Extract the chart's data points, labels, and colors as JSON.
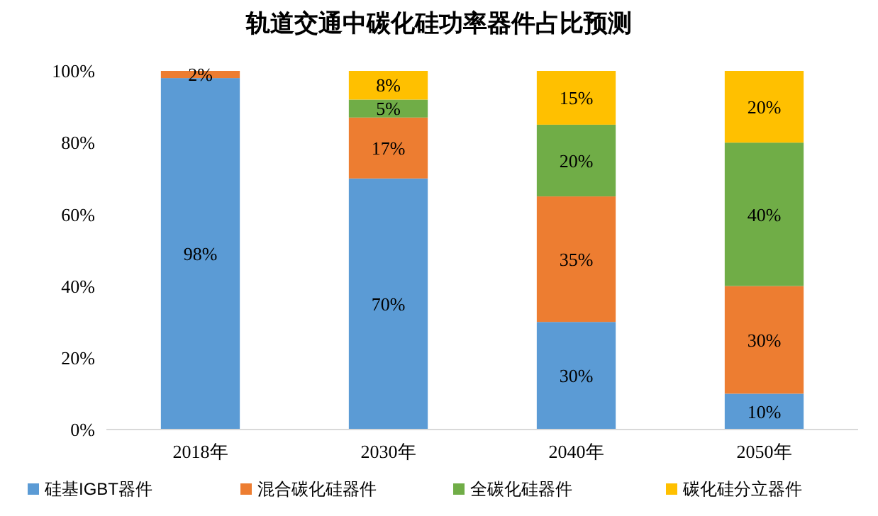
{
  "chart_data": {
    "type": "bar",
    "title": "轨道交通中碳化硅功率器件占比预测",
    "categories": [
      "2018年",
      "2030年",
      "2040年",
      "2050年"
    ],
    "stacked": true,
    "ylim": [
      0,
      100
    ],
    "yticks": [
      {
        "value": 0,
        "label": "0%"
      },
      {
        "value": 20,
        "label": "20%"
      },
      {
        "value": 40,
        "label": "40%"
      },
      {
        "value": 60,
        "label": "60%"
      },
      {
        "value": 80,
        "label": "80%"
      },
      {
        "value": 100,
        "label": "100%"
      }
    ],
    "grid": false,
    "legend": "bottom",
    "series": [
      {
        "name": "硅基IGBT器件",
        "color": "#5b9bd5",
        "values": [
          98,
          70,
          30,
          10
        ],
        "value_labels": [
          "98%",
          "70%",
          "30%",
          "10%"
        ]
      },
      {
        "name": "混合碳化硅器件",
        "color": "#ed7d31",
        "values": [
          2,
          17,
          35,
          30
        ],
        "value_labels": [
          "2%",
          "17%",
          "35%",
          "30%"
        ]
      },
      {
        "name": "全碳化硅器件",
        "color": "#70ad47",
        "values": [
          0,
          5,
          20,
          40
        ],
        "value_labels": [
          null,
          "5%",
          "20%",
          "40%"
        ]
      },
      {
        "name": "碳化硅分立器件",
        "color": "#ffc000",
        "values": [
          0,
          8,
          15,
          20
        ],
        "value_labels": [
          null,
          "8%",
          "15%",
          "20%"
        ]
      }
    ]
  }
}
